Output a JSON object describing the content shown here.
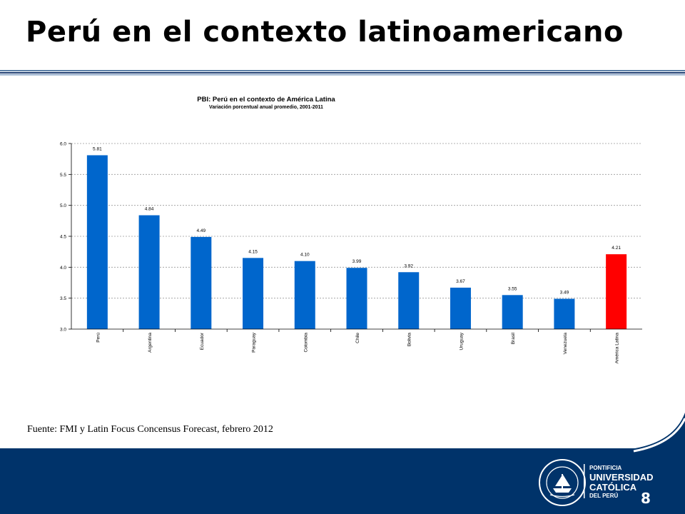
{
  "slide": {
    "title": "Perú en el contexto latinoamericano",
    "source": "Fuente: FMI y Latin Focus Concensus Forecast, febrero 2012",
    "page_number": "8",
    "colors": {
      "bar": "#0066cc",
      "highlight": "#ff0000",
      "footer": "#00336a"
    }
  },
  "logo": {
    "line1": "PONTIFICIA",
    "line2": "UNIVERSIDAD",
    "line3": "CATÓLICA",
    "line4": "DEL PERÚ",
    "seal_text": "ET LUX IN TENEBRIS LUCET"
  },
  "chart_data": {
    "type": "bar",
    "title": "PBI: Perú en el contexto de América Latina",
    "subtitle": "Variación porcentual anual promedio, 2001-2011",
    "categories": [
      "Perú",
      "Argentina",
      "Ecuador",
      "Paraguay",
      "Colombia",
      "Chile",
      "Bolivia",
      "Uruguay",
      "Brasil",
      "Venezuela",
      "América Latina"
    ],
    "values": [
      5.81,
      4.84,
      4.49,
      4.15,
      4.1,
      3.99,
      3.92,
      3.67,
      3.55,
      3.49,
      4.21
    ],
    "data_labels": [
      "5.81",
      "4.84",
      "4.49",
      "4.15",
      "4.10",
      "3.99",
      "3.92",
      "3.67",
      "3.55",
      "3.49",
      "4.21"
    ],
    "highlight_category": "América Latina",
    "ylim": [
      3.0,
      6.0
    ],
    "yticks": [
      "3.0",
      "3.5",
      "4.0",
      "4.5",
      "5.0",
      "5.5",
      "6.0"
    ],
    "grid": true
  }
}
